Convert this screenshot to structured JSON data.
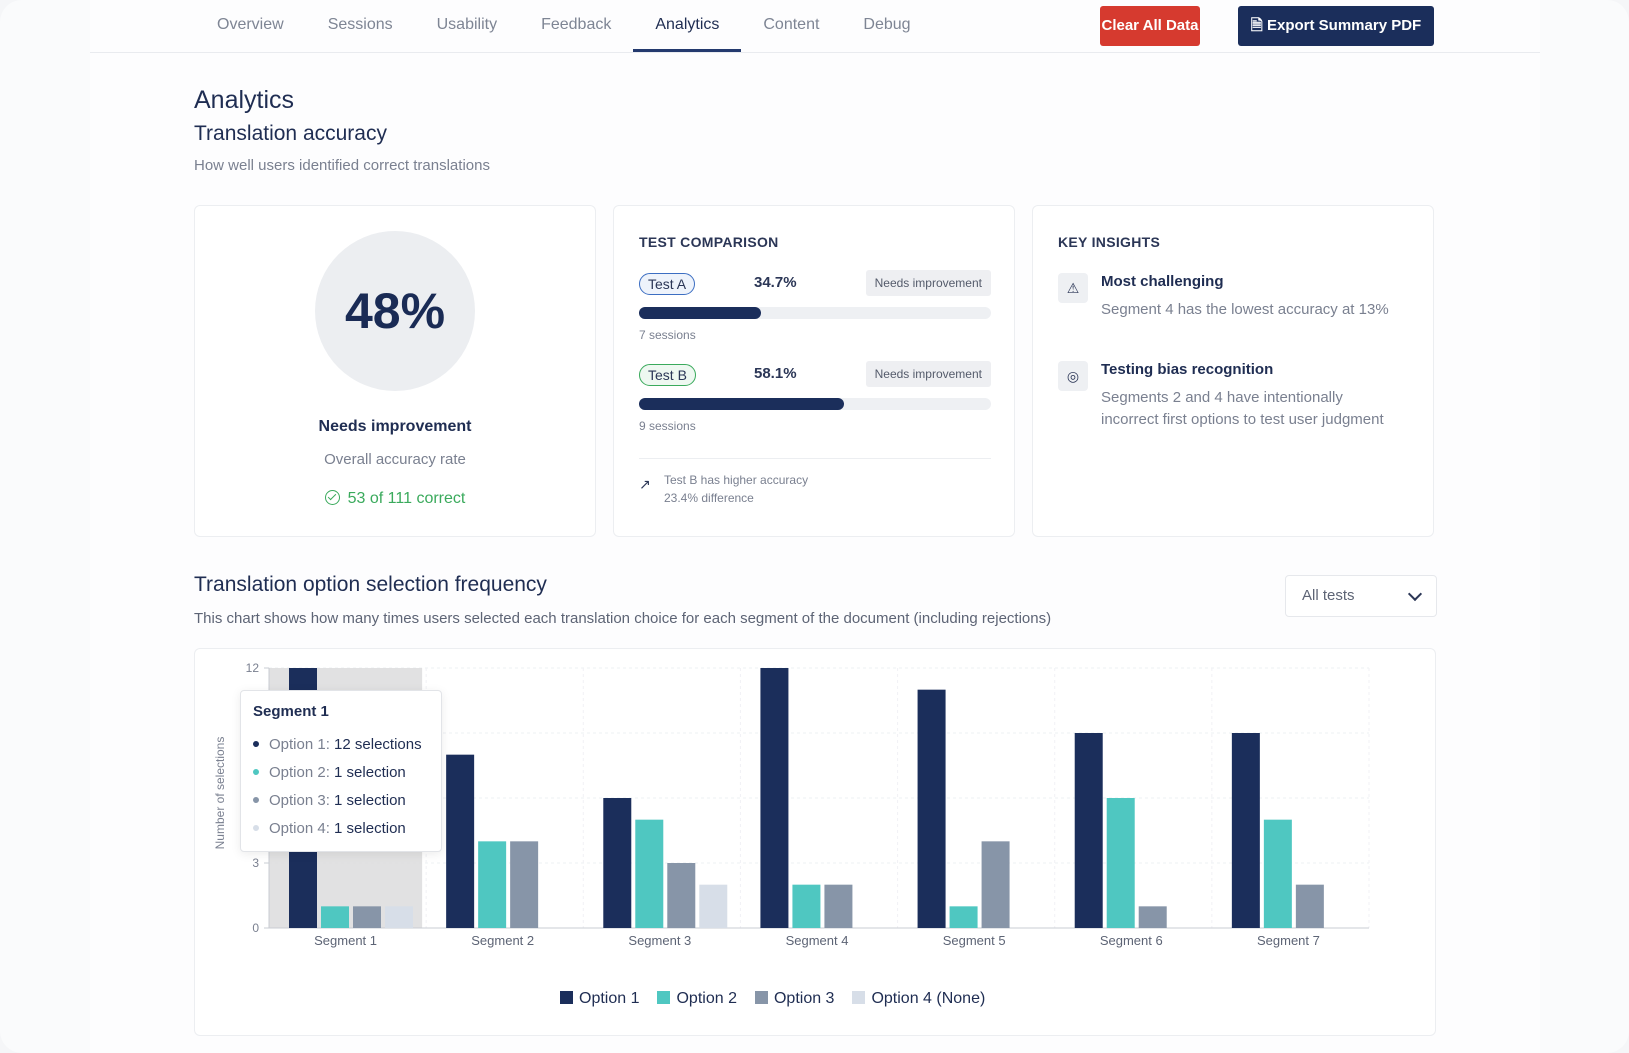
{
  "nav": {
    "tabs": [
      "Overview",
      "Sessions",
      "Usability",
      "Feedback",
      "Analytics",
      "Content",
      "Debug"
    ],
    "active_tab": "Analytics",
    "clear_label": "Clear All Data",
    "export_label": "Export Summary PDF"
  },
  "page": {
    "title": "Analytics",
    "section_title": "Translation accuracy",
    "section_sub": "How well users identified correct translations"
  },
  "accuracy": {
    "percent": "48%",
    "status": "Needs improvement",
    "caption": "Overall accuracy rate",
    "correct": "53 of 111 correct"
  },
  "comparison": {
    "title": "TEST COMPARISON",
    "tests": [
      {
        "name": "Test A",
        "pct": "34.7%",
        "value": 34.7,
        "badge": "Needs improvement",
        "sessions": "7 sessions"
      },
      {
        "name": "Test B",
        "pct": "58.1%",
        "value": 58.1,
        "badge": "Needs improvement",
        "sessions": "9 sessions"
      }
    ],
    "note_line1": "Test B has higher accuracy",
    "note_line2": "23.4% difference"
  },
  "insights": {
    "title": "KEY INSIGHTS",
    "items": [
      {
        "icon": "warning-icon",
        "title": "Most challenging",
        "text": "Segment 4 has the lowest accuracy at 13%"
      },
      {
        "icon": "target-icon",
        "title": "Testing bias recognition",
        "text": "Segments 2 and 4 have intentionally incorrect first options to test user judgment"
      }
    ]
  },
  "frequency": {
    "title": "Translation option selection frequency",
    "subtitle": "This chart shows how many times users selected each translation choice for each segment of the document (including rejections)",
    "filter_value": "All tests"
  },
  "tooltip": {
    "title": "Segment 1",
    "lines": [
      {
        "label": "Option 1:",
        "value": "12 selections"
      },
      {
        "label": "Option 2:",
        "value": "1 selection"
      },
      {
        "label": "Option 3:",
        "value": "1 selection"
      },
      {
        "label": "Option 4:",
        "value": "1 selection"
      }
    ]
  },
  "colors": {
    "option1": "#1b2e5b",
    "option2": "#4fc7c1",
    "option3": "#8795a8",
    "option4": "#d7dee8",
    "accent": "#243a6e",
    "danger": "#d63a2f"
  },
  "chart_data": {
    "type": "bar",
    "ylabel": "Number of selections",
    "ylim": [
      0,
      12
    ],
    "yticks": [
      0,
      3,
      12
    ],
    "categories": [
      "Segment 1",
      "Segment 2",
      "Segment 3",
      "Segment 4",
      "Segment 5",
      "Segment 6",
      "Segment 7"
    ],
    "series": [
      {
        "name": "Option 1",
        "values": [
          12,
          8,
          6,
          12,
          11,
          9,
          9
        ]
      },
      {
        "name": "Option 2",
        "values": [
          1,
          4,
          5,
          2,
          1,
          6,
          5
        ]
      },
      {
        "name": "Option 3",
        "values": [
          1,
          4,
          3,
          2,
          4,
          1,
          2
        ]
      },
      {
        "name": "Option 4 (None)",
        "values": [
          1,
          0,
          2,
          0,
          0,
          0,
          0
        ]
      }
    ],
    "highlighted_category": "Segment 1",
    "grid": true,
    "legend": "bottom-center"
  }
}
